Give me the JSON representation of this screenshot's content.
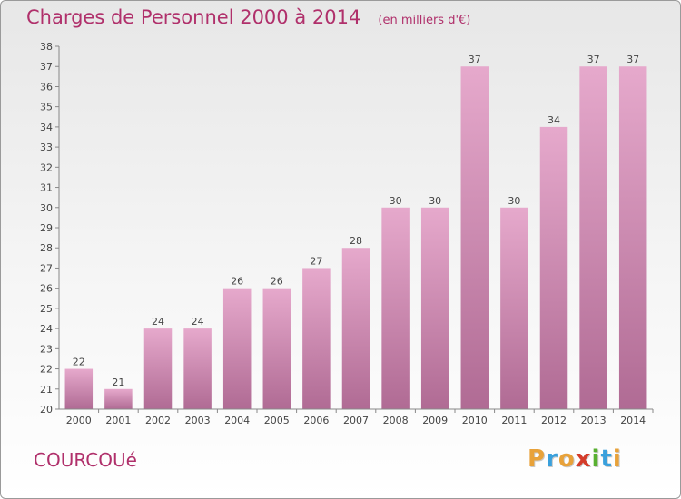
{
  "header": {
    "title": "Charges de Personnel 2000 à 2014",
    "subtitle": "(en milliers d'€)"
  },
  "footer": {
    "place": "COURCOUé",
    "logo": {
      "letters": [
        "P",
        "r",
        "o",
        "x",
        "i",
        "t",
        "i"
      ],
      "colors": [
        "#e8a23a",
        "#3aa0dc",
        "#e8a23a",
        "#d43c2a",
        "#58b030",
        "#3aa0dc",
        "#e8a23a"
      ]
    }
  },
  "chart_data": {
    "type": "bar",
    "title": "Charges de Personnel 2000 à 2014",
    "subtitle": "(en milliers d'€)",
    "categories": [
      "2000",
      "2001",
      "2002",
      "2003",
      "2004",
      "2005",
      "2006",
      "2007",
      "2008",
      "2009",
      "2010",
      "2011",
      "2012",
      "2013",
      "2014"
    ],
    "values": [
      22,
      21,
      24,
      24,
      26,
      26,
      27,
      28,
      30,
      30,
      37,
      30,
      34,
      37,
      37
    ],
    "ylim": [
      20,
      38
    ],
    "yticks": [
      20,
      21,
      22,
      23,
      24,
      25,
      26,
      27,
      28,
      29,
      30,
      31,
      32,
      33,
      34,
      35,
      36,
      37,
      38
    ],
    "grid": false,
    "data_labels": true,
    "bar_color": "#d98db7"
  }
}
